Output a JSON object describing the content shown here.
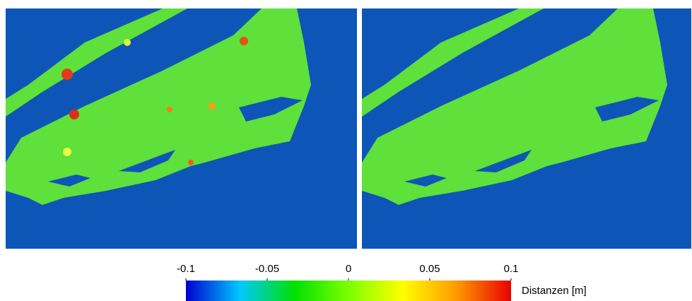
{
  "chart_data": {
    "type": "heatmap",
    "colorbar_label": "Distanzen [m]",
    "xlim": [
      -0.1,
      0.1
    ],
    "xticks": [
      -0.1,
      -0.05,
      0,
      0.05,
      0.1
    ],
    "colormap": [
      "#0000d0",
      "#00c8ff",
      "#00e000",
      "#7cff00",
      "#ffff00",
      "#ff9900",
      "#e80000"
    ]
  }
}
